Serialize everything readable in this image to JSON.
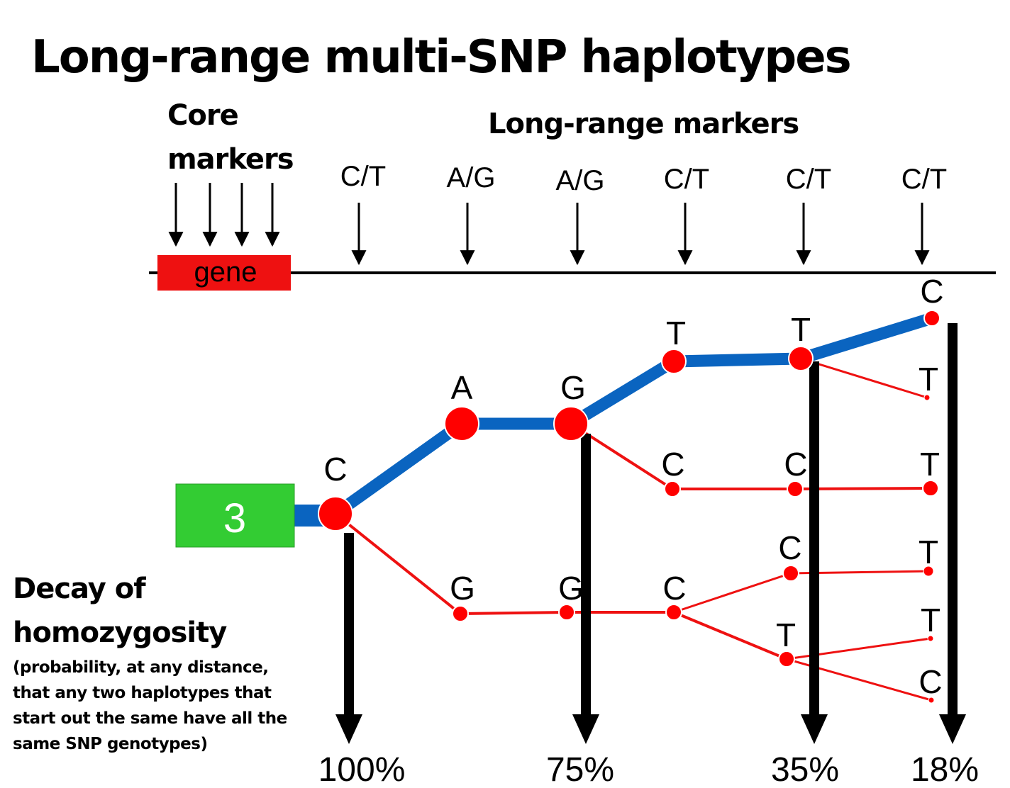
{
  "title": "Long-range multi-SNP haplotypes",
  "core_label_line1": "Core",
  "core_label_line2": "markers",
  "long_range_label": "Long-range markers",
  "gene_label": "gene",
  "haplotype_box_label": "3",
  "decay_title_line1": "Decay of",
  "decay_title_line2": "homozygosity",
  "decay_note": "(probability, at any distance, that any two haplotypes that start out the same have all the same SNP genotypes)",
  "marker_labels": [
    "C/T",
    "A/G",
    "A/G",
    "C/T",
    "C/T",
    "C/T"
  ],
  "decay_values": [
    "100%",
    "75%",
    "35%",
    "18%"
  ],
  "colors": {
    "gene": "#ee1111",
    "box": "#33cc33",
    "main_path": "#0a64c0",
    "branch": "#ee1111",
    "node": "#ff0000",
    "arrow": "#000000"
  },
  "nodes": [
    {
      "id": "n_c0",
      "allele": "C"
    },
    {
      "id": "n_a1",
      "allele": "A"
    },
    {
      "id": "n_g2",
      "allele": "G"
    },
    {
      "id": "n_t3",
      "allele": "T"
    },
    {
      "id": "n_t4",
      "allele": "T"
    },
    {
      "id": "n_c5",
      "allele": "C"
    },
    {
      "id": "n_t5a",
      "allele": "T"
    },
    {
      "id": "n_c3b",
      "allele": "C"
    },
    {
      "id": "n_c4b",
      "allele": "C"
    },
    {
      "id": "n_t5b",
      "allele": "T"
    },
    {
      "id": "n_g1c",
      "allele": "G"
    },
    {
      "id": "n_g2c",
      "allele": "G"
    },
    {
      "id": "n_c3c",
      "allele": "C"
    },
    {
      "id": "n_c4c",
      "allele": "C"
    },
    {
      "id": "n_t5c",
      "allele": "T"
    },
    {
      "id": "n_t4d",
      "allele": "T"
    },
    {
      "id": "n_t5d",
      "allele": "T"
    },
    {
      "id": "n_c5d",
      "allele": "C"
    }
  ],
  "edges": [
    {
      "from": "n_c0",
      "to": "n_a1",
      "main": true
    },
    {
      "from": "n_a1",
      "to": "n_g2",
      "main": true
    },
    {
      "from": "n_g2",
      "to": "n_t3",
      "main": true
    },
    {
      "from": "n_t3",
      "to": "n_t4",
      "main": true
    },
    {
      "from": "n_t4",
      "to": "n_c5",
      "main": true
    },
    {
      "from": "n_t4",
      "to": "n_t5a",
      "main": false
    },
    {
      "from": "n_g2",
      "to": "n_c3b",
      "main": false
    },
    {
      "from": "n_c3b",
      "to": "n_c4b",
      "main": false
    },
    {
      "from": "n_c4b",
      "to": "n_t5b",
      "main": false
    },
    {
      "from": "n_c0",
      "to": "n_g1c",
      "main": false
    },
    {
      "from": "n_g1c",
      "to": "n_g2c",
      "main": false
    },
    {
      "from": "n_g2c",
      "to": "n_c3c",
      "main": false
    },
    {
      "from": "n_c3c",
      "to": "n_c4c",
      "main": false
    },
    {
      "from": "n_c4c",
      "to": "n_t5c",
      "main": false
    },
    {
      "from": "n_c3c",
      "to": "n_t4d",
      "main": false
    },
    {
      "from": "n_t4d",
      "to": "n_t5d",
      "main": false
    },
    {
      "from": "n_t4d",
      "to": "n_c5d",
      "main": false
    }
  ]
}
